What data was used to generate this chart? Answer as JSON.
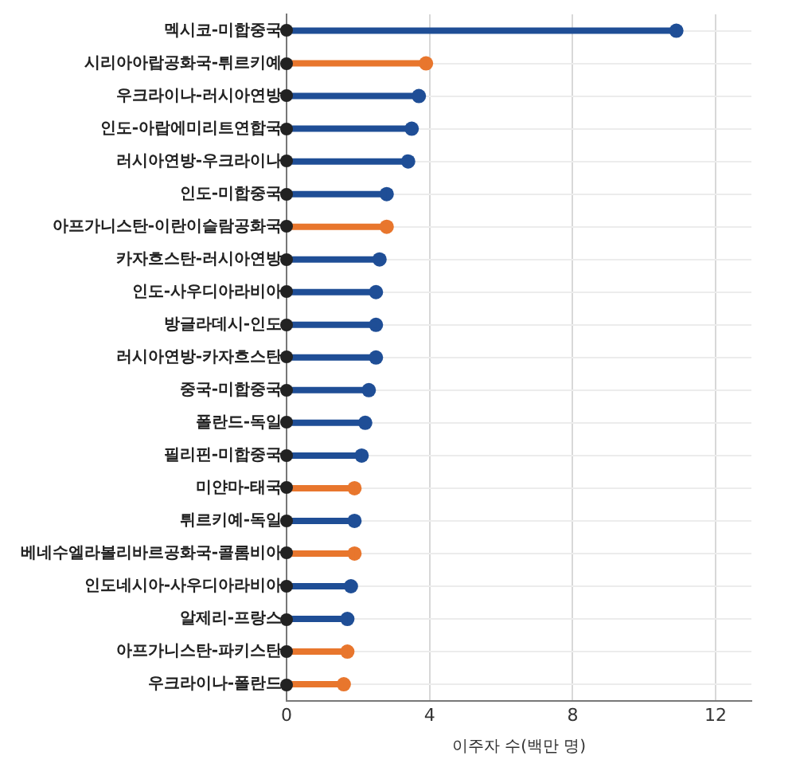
{
  "chart_data": {
    "type": "lollipop",
    "orientation": "horizontal",
    "xlabel": "이주자 수(백만 명)",
    "categories": [
      "멕시코-미합중국",
      "시리아아랍공화국-튀르키예",
      "우크라이나-러시아연방",
      "인도-아랍에미리트연합국",
      "러시아연방-우크라이나",
      "인도-미합중국",
      "아프가니스탄-이란이슬람공화국",
      "카자흐스탄-러시아연방",
      "인도-사우디아라비아",
      "방글라데시-인도",
      "러시아연방-카자흐스탄",
      "중국-미합중국",
      "폴란드-독일",
      "필리핀-미합중국",
      "미얀마-태국",
      "튀르키예-독일",
      "베네수엘라볼리바르공화국-콜롬비아",
      "인도네시아-사우디아라비아",
      "알제리-프랑스",
      "아프가니스탄-파키스탄",
      "우크라이나-폴란드"
    ],
    "values": [
      10.9,
      3.9,
      3.7,
      3.5,
      3.4,
      2.8,
      2.8,
      2.6,
      2.5,
      2.5,
      2.5,
      2.3,
      2.2,
      2.1,
      1.9,
      1.9,
      1.9,
      1.8,
      1.7,
      1.7,
      1.6
    ],
    "colors": [
      "#1f4e96",
      "#e8762d",
      "#1f4e96",
      "#1f4e96",
      "#1f4e96",
      "#1f4e96",
      "#e8762d",
      "#1f4e96",
      "#1f4e96",
      "#1f4e96",
      "#1f4e96",
      "#1f4e96",
      "#1f4e96",
      "#1f4e96",
      "#e8762d",
      "#1f4e96",
      "#e8762d",
      "#1f4e96",
      "#1f4e96",
      "#e8762d",
      "#e8762d"
    ],
    "xlim": [
      0,
      13
    ],
    "xticks": [
      0,
      4,
      8,
      12
    ],
    "grid": true
  }
}
